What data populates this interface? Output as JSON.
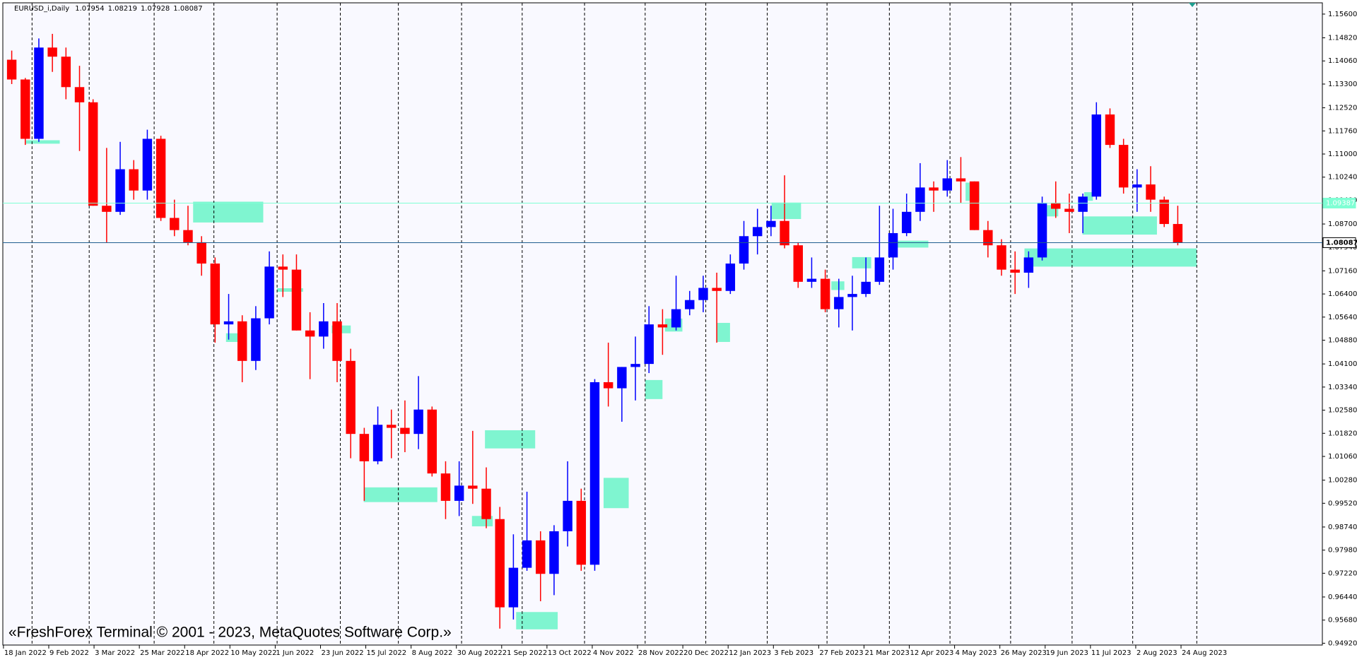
{
  "header": {
    "symbol": "EURUSD_i,Daily",
    "ohlc": [
      1.07954,
      1.08219,
      1.07928,
      1.08087
    ]
  },
  "watermark": "«FreshForex Terminal © 2001 - 2023, MetaQuotes Software Corp.»",
  "chart_data": {
    "type": "candlestick",
    "up_color": "#0000ff",
    "down_color": "#ff0000",
    "grid": false,
    "ylim": [
      0.9486,
      1.1597
    ],
    "yticks": [
      {
        "value": 1.156,
        "label": "1.15600"
      },
      {
        "value": 1.1482,
        "label": "1.14820"
      },
      {
        "value": 1.1406,
        "label": "1.14060"
      },
      {
        "value": 1.133,
        "label": "1.13300"
      },
      {
        "value": 1.1252,
        "label": "1.12520"
      },
      {
        "value": 1.1176,
        "label": "1.11760"
      },
      {
        "value": 1.11,
        "label": "1.11000"
      },
      {
        "value": 1.1024,
        "label": "1.10240"
      },
      {
        "value": 1.0948,
        "label": "1.09480"
      },
      {
        "value": 1.087,
        "label": "1.08700"
      },
      {
        "value": 1.0794,
        "label": "1.07940"
      },
      {
        "value": 1.0716,
        "label": "1.07160"
      },
      {
        "value": 1.064,
        "label": "1.06400"
      },
      {
        "value": 1.0564,
        "label": "1.05640"
      },
      {
        "value": 1.0488,
        "label": "1.04880"
      },
      {
        "value": 1.041,
        "label": "1.04100"
      },
      {
        "value": 1.0334,
        "label": "1.03340"
      },
      {
        "value": 1.0258,
        "label": "1.02580"
      },
      {
        "value": 1.0182,
        "label": "1.01820"
      },
      {
        "value": 1.0106,
        "label": "1.01060"
      },
      {
        "value": 1.0028,
        "label": "1.00280"
      },
      {
        "value": 0.9952,
        "label": "0.99520"
      },
      {
        "value": 0.9874,
        "label": "0.98740"
      },
      {
        "value": 0.9798,
        "label": "0.97980"
      },
      {
        "value": 0.9722,
        "label": "0.97220"
      },
      {
        "value": 0.9644,
        "label": "0.96440"
      },
      {
        "value": 0.9568,
        "label": "0.95680"
      },
      {
        "value": 0.9492,
        "label": "0.94920"
      }
    ],
    "xticks": [
      "18 Jan 2022",
      "9 Feb 2022",
      "3 Mar 2022",
      "25 Mar 2022",
      "18 Apr 2022",
      "10 May 2022",
      "1 Jun 2022",
      "23 Jun 2022",
      "15 Jul 2022",
      "8 Aug 2022",
      "30 Aug 2022",
      "21 Sep 2022",
      "13 Oct 2022",
      "4 Nov 2022",
      "28 Nov 2022",
      "20 Dec 2022",
      "12 Jan 2023",
      "3 Feb 2023",
      "27 Feb 2023",
      "21 Mar 2023",
      "12 Apr 2023",
      "4 May 2023",
      "26 May 2023",
      "19 Jun 2023",
      "11 Jul 2023",
      "2 Aug 2023",
      "24 Aug 2023"
    ],
    "open": [
      1.141,
      1.1345,
      1.115,
      1.145,
      1.142,
      1.132,
      1.127,
      1.093,
      1.091,
      1.105,
      1.098,
      1.115,
      1.089,
      1.085,
      1.081,
      1.074,
      1.054,
      1.055,
      1.042,
      1.056,
      1.073,
      1.072,
      1.052,
      1.05,
      1.055,
      1.042,
      1.018,
      1.009,
      1.021,
      1.02,
      1.018,
      1.026,
      1.005,
      0.996,
      1.001,
      1.0,
      0.99,
      0.961,
      0.974,
      0.983,
      0.972,
      0.986,
      0.996,
      0.975,
      1.035,
      1.033,
      1.04,
      1.041,
      1.054,
      1.053,
      1.059,
      1.062,
      1.066,
      1.065,
      1.074,
      1.083,
      1.086,
      1.088,
      1.08,
      1.068,
      1.069,
      1.059,
      1.063,
      1.064,
      1.068,
      1.076,
      1.084,
      1.091,
      1.099,
      1.098,
      1.102,
      1.101,
      1.085,
      1.08,
      1.072,
      1.071,
      1.076,
      1.094,
      1.092,
      1.091,
      1.096,
      1.123,
      1.113,
      1.099,
      1.1,
      1.095,
      1.087
    ],
    "high": [
      1.144,
      1.135,
      1.148,
      1.1495,
      1.145,
      1.139,
      1.128,
      1.112,
      1.114,
      1.108,
      1.118,
      1.116,
      1.095,
      1.093,
      1.083,
      1.076,
      1.064,
      1.057,
      1.06,
      1.078,
      1.077,
      1.077,
      1.058,
      1.061,
      1.061,
      1.046,
      1.02,
      1.027,
      1.026,
      1.029,
      1.037,
      1.027,
      1.009,
      1.009,
      1.019,
      1.007,
      0.994,
      0.985,
      0.999,
      0.986,
      0.988,
      1.009,
      1.0,
      1.036,
      1.048,
      1.04,
      1.05,
      1.06,
      1.059,
      1.07,
      1.065,
      1.07,
      1.071,
      1.077,
      1.088,
      1.092,
      1.093,
      1.103,
      1.081,
      1.076,
      1.072,
      1.069,
      1.07,
      1.076,
      1.093,
      1.092,
      1.097,
      1.107,
      1.101,
      1.108,
      1.109,
      1.101,
      1.088,
      1.082,
      1.078,
      1.078,
      1.096,
      1.101,
      1.097,
      1.097,
      1.127,
      1.125,
      1.115,
      1.105,
      1.106,
      1.096,
      1.093
    ],
    "low": [
      1.133,
      1.113,
      1.114,
      1.137,
      1.128,
      1.111,
      1.093,
      1.081,
      1.09,
      1.095,
      1.095,
      1.088,
      1.083,
      1.08,
      1.07,
      1.048,
      1.049,
      1.035,
      1.039,
      1.054,
      1.063,
      1.052,
      1.036,
      1.046,
      1.035,
      1.01,
      0.996,
      1.008,
      1.01,
      1.012,
      1.013,
      1.004,
      0.99,
      0.991,
      0.995,
      0.987,
      0.954,
      0.957,
      0.973,
      0.963,
      0.965,
      0.981,
      0.973,
      0.973,
      1.027,
      1.022,
      1.029,
      1.038,
      1.044,
      1.052,
      1.057,
      1.058,
      1.048,
      1.064,
      1.072,
      1.077,
      1.083,
      1.079,
      1.066,
      1.066,
      1.058,
      1.053,
      1.052,
      1.063,
      1.067,
      1.072,
      1.083,
      1.088,
      1.091,
      1.096,
      1.094,
      1.085,
      1.076,
      1.07,
      1.064,
      1.066,
      1.075,
      1.089,
      1.084,
      1.084,
      1.095,
      1.112,
      1.097,
      1.091,
      1.091,
      1.086,
      1.08
    ],
    "close": [
      1.1345,
      1.115,
      1.145,
      1.142,
      1.132,
      1.127,
      1.093,
      1.091,
      1.105,
      1.098,
      1.115,
      1.089,
      1.085,
      1.081,
      1.074,
      1.054,
      1.055,
      1.042,
      1.056,
      1.073,
      1.072,
      1.052,
      1.05,
      1.055,
      1.042,
      1.018,
      1.009,
      1.021,
      1.02,
      1.018,
      1.026,
      1.005,
      0.996,
      1.001,
      1.0,
      0.99,
      0.961,
      0.974,
      0.983,
      0.972,
      0.986,
      0.996,
      0.975,
      1.035,
      1.033,
      1.04,
      1.041,
      1.054,
      1.053,
      1.059,
      1.062,
      1.066,
      1.065,
      1.074,
      1.083,
      1.086,
      1.088,
      1.08,
      1.068,
      1.069,
      1.059,
      1.063,
      1.064,
      1.068,
      1.076,
      1.084,
      1.091,
      1.099,
      1.098,
      1.102,
      1.101,
      1.085,
      1.08,
      1.072,
      1.071,
      1.076,
      1.094,
      1.092,
      1.091,
      1.096,
      1.123,
      1.113,
      1.099,
      1.1,
      1.095,
      1.087,
      1.08087
    ],
    "price_lines": [
      {
        "value": 1.09387,
        "label": "1.09387",
        "color": "#7fffd4"
      },
      {
        "value": 1.08087,
        "label": "1.08087",
        "color": "#1f5f8f"
      }
    ]
  }
}
